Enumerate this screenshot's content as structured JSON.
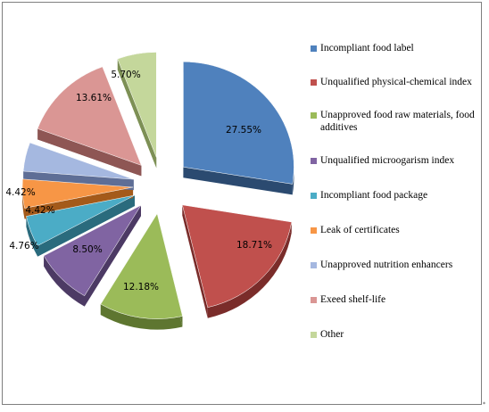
{
  "chart_data": {
    "type": "pie",
    "exploded": true,
    "style": "3d",
    "legend_position": "right",
    "slices": [
      {
        "label": "Incompliant food label",
        "value": 27.55,
        "display": "27.55%",
        "color": "#4F81BD",
        "side": "#2B4A70"
      },
      {
        "label": "Unqualified physical-chemical index",
        "value": 18.71,
        "display": "18.71%",
        "color": "#C0504D",
        "side": "#7A2C2A"
      },
      {
        "label": "Unapproved food raw materials, food additives",
        "value": 12.18,
        "display": "12.18%",
        "color": "#9BBB59",
        "side": "#5E7630"
      },
      {
        "label": "Unqualified microogarism index",
        "value": 8.5,
        "display": "8.50%",
        "color": "#8064A2",
        "side": "#4C3A64"
      },
      {
        "label": "Incompliant food package",
        "value": 4.76,
        "display": "4.76%",
        "color": "#4BACC6",
        "side": "#2A6B7D"
      },
      {
        "label": "Leak of certificates",
        "value": 4.42,
        "display": "4.42%",
        "color": "#F79646",
        "side": "#A45A1A"
      },
      {
        "label": "Unapproved nutrition enhancers",
        "value": 4.42,
        "display": "4.42%",
        "color": "#A5B8E0",
        "side": "#5E6E96"
      },
      {
        "label": "Exeed shelf-life",
        "value": 13.61,
        "display": "13.61%",
        "color": "#DA9694",
        "side": "#8E5654"
      },
      {
        "label": "Other",
        "value": 5.7,
        "display": "5.70%",
        "color": "#C4D79B",
        "side": "#7D9055"
      }
    ]
  }
}
